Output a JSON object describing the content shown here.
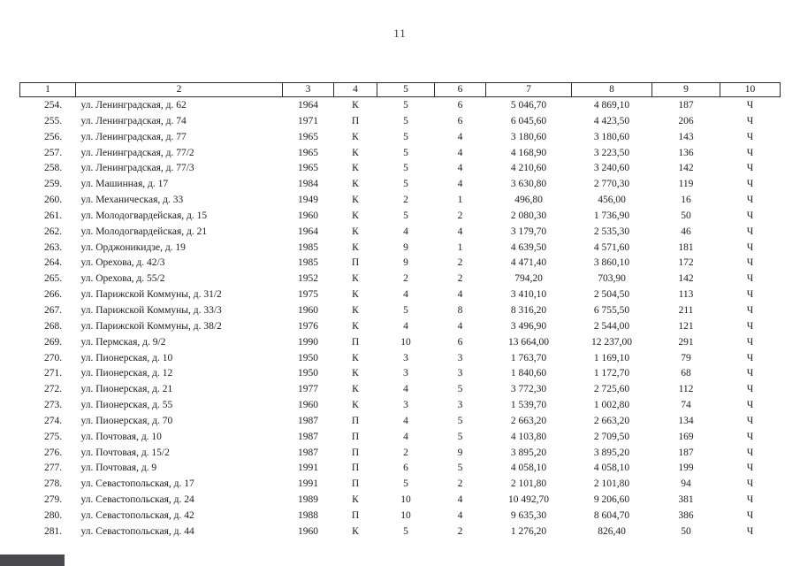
{
  "page": {
    "number": "11"
  },
  "colors": {
    "scan_artifact": "#4a4a4e"
  },
  "table": {
    "headers": [
      "1",
      "2",
      "3",
      "4",
      "5",
      "6",
      "7",
      "8",
      "9",
      "10"
    ],
    "rows": [
      {
        "num": "254.",
        "address": "ул. Ленинградская, д. 62",
        "year": "1964",
        "material": "К",
        "floors": "5",
        "entrances": "6",
        "area_total": "5 046,70",
        "area_living": "4 869,10",
        "residents": "187",
        "ownership": "Ч"
      },
      {
        "num": "255.",
        "address": "ул. Ленинградская, д. 74",
        "year": "1971",
        "material": "П",
        "floors": "5",
        "entrances": "6",
        "area_total": "6 045,60",
        "area_living": "4 423,50",
        "residents": "206",
        "ownership": "Ч"
      },
      {
        "num": "256.",
        "address": "ул. Ленинградская, д. 77",
        "year": "1965",
        "material": "К",
        "floors": "5",
        "entrances": "4",
        "area_total": "3 180,60",
        "area_living": "3 180,60",
        "residents": "143",
        "ownership": "Ч"
      },
      {
        "num": "257.",
        "address": "ул. Ленинградская, д. 77/2",
        "year": "1965",
        "material": "К",
        "floors": "5",
        "entrances": "4",
        "area_total": "4 168,90",
        "area_living": "3 223,50",
        "residents": "136",
        "ownership": "Ч"
      },
      {
        "num": "258.",
        "address": "ул. Ленинградская, д. 77/3",
        "year": "1965",
        "material": "К",
        "floors": "5",
        "entrances": "4",
        "area_total": "4 210,60",
        "area_living": "3 240,60",
        "residents": "142",
        "ownership": "Ч"
      },
      {
        "num": "259.",
        "address": "ул. Машинная, д. 17",
        "year": "1984",
        "material": "К",
        "floors": "5",
        "entrances": "4",
        "area_total": "3 630,80",
        "area_living": "2 770,30",
        "residents": "119",
        "ownership": "Ч"
      },
      {
        "num": "260.",
        "address": "ул. Механическая, д. 33",
        "year": "1949",
        "material": "К",
        "floors": "2",
        "entrances": "1",
        "area_total": "496,80",
        "area_living": "456,00",
        "residents": "16",
        "ownership": "Ч"
      },
      {
        "num": "261.",
        "address": "ул. Молодогвардейская, д. 15",
        "year": "1960",
        "material": "К",
        "floors": "5",
        "entrances": "2",
        "area_total": "2 080,30",
        "area_living": "1 736,90",
        "residents": "50",
        "ownership": "Ч"
      },
      {
        "num": "262.",
        "address": "ул. Молодогвардейская, д. 21",
        "year": "1964",
        "material": "К",
        "floors": "4",
        "entrances": "4",
        "area_total": "3 179,70",
        "area_living": "2 535,30",
        "residents": "46",
        "ownership": "Ч"
      },
      {
        "num": "263.",
        "address": "ул. Орджоникидзе, д. 19",
        "year": "1985",
        "material": "К",
        "floors": "9",
        "entrances": "1",
        "area_total": "4 639,50",
        "area_living": "4 571,60",
        "residents": "181",
        "ownership": "Ч"
      },
      {
        "num": "264.",
        "address": "ул. Орехова, д. 42/3",
        "year": "1985",
        "material": "П",
        "floors": "9",
        "entrances": "2",
        "area_total": "4 471,40",
        "area_living": "3 860,10",
        "residents": "172",
        "ownership": "Ч"
      },
      {
        "num": "265.",
        "address": "ул. Орехова, д. 55/2",
        "year": "1952",
        "material": "К",
        "floors": "2",
        "entrances": "2",
        "area_total": "794,20",
        "area_living": "703,90",
        "residents": "142",
        "ownership": "Ч"
      },
      {
        "num": "266.",
        "address": "ул. Парижской Коммуны, д. 31/2",
        "year": "1975",
        "material": "К",
        "floors": "4",
        "entrances": "4",
        "area_total": "3 410,10",
        "area_living": "2 504,50",
        "residents": "113",
        "ownership": "Ч"
      },
      {
        "num": "267.",
        "address": "ул. Парижской Коммуны, д. 33/3",
        "year": "1960",
        "material": "К",
        "floors": "5",
        "entrances": "8",
        "area_total": "8 316,20",
        "area_living": "6 755,50",
        "residents": "211",
        "ownership": "Ч"
      },
      {
        "num": "268.",
        "address": "ул. Парижской Коммуны, д. 38/2",
        "year": "1976",
        "material": "К",
        "floors": "4",
        "entrances": "4",
        "area_total": "3 496,90",
        "area_living": "2 544,00",
        "residents": "121",
        "ownership": "Ч"
      },
      {
        "num": "269.",
        "address": "ул. Пермская, д. 9/2",
        "year": "1990",
        "material": "П",
        "floors": "10",
        "entrances": "6",
        "area_total": "13 664,00",
        "area_living": "12 237,00",
        "residents": "291",
        "ownership": "Ч"
      },
      {
        "num": "270.",
        "address": "ул. Пионерская, д. 10",
        "year": "1950",
        "material": "К",
        "floors": "3",
        "entrances": "3",
        "area_total": "1 763,70",
        "area_living": "1 169,10",
        "residents": "79",
        "ownership": "Ч"
      },
      {
        "num": "271.",
        "address": "ул. Пионерская, д. 12",
        "year": "1950",
        "material": "К",
        "floors": "3",
        "entrances": "3",
        "area_total": "1 840,60",
        "area_living": "1 172,70",
        "residents": "68",
        "ownership": "Ч"
      },
      {
        "num": "272.",
        "address": "ул. Пионерская, д. 21",
        "year": "1977",
        "material": "К",
        "floors": "4",
        "entrances": "5",
        "area_total": "3 772,30",
        "area_living": "2 725,60",
        "residents": "112",
        "ownership": "Ч"
      },
      {
        "num": "273.",
        "address": "ул. Пионерская, д. 55",
        "year": "1960",
        "material": "К",
        "floors": "3",
        "entrances": "3",
        "area_total": "1 539,70",
        "area_living": "1 002,80",
        "residents": "74",
        "ownership": "Ч"
      },
      {
        "num": "274.",
        "address": "ул. Пионерская, д. 70",
        "year": "1987",
        "material": "П",
        "floors": "4",
        "entrances": "5",
        "area_total": "2 663,20",
        "area_living": "2 663,20",
        "residents": "134",
        "ownership": "Ч"
      },
      {
        "num": "275.",
        "address": "ул. Почтовая, д. 10",
        "year": "1987",
        "material": "П",
        "floors": "4",
        "entrances": "5",
        "area_total": "4 103,80",
        "area_living": "2 709,50",
        "residents": "169",
        "ownership": "Ч"
      },
      {
        "num": "276.",
        "address": "ул. Почтовая, д. 15/2",
        "year": "1987",
        "material": "П",
        "floors": "2",
        "entrances": "9",
        "area_total": "3 895,20",
        "area_living": "3 895,20",
        "residents": "187",
        "ownership": "Ч"
      },
      {
        "num": "277.",
        "address": "ул. Почтовая, д. 9",
        "year": "1991",
        "material": "П",
        "floors": "6",
        "entrances": "5",
        "area_total": "4 058,10",
        "area_living": "4 058,10",
        "residents": "199",
        "ownership": "Ч"
      },
      {
        "num": "278.",
        "address": "ул. Севастопольская, д. 17",
        "year": "1991",
        "material": "П",
        "floors": "5",
        "entrances": "2",
        "area_total": "2 101,80",
        "area_living": "2 101,80",
        "residents": "94",
        "ownership": "Ч"
      },
      {
        "num": "279.",
        "address": "ул. Севастопольская, д. 24",
        "year": "1989",
        "material": "К",
        "floors": "10",
        "entrances": "4",
        "area_total": "10 492,70",
        "area_living": "9 206,60",
        "residents": "381",
        "ownership": "Ч"
      },
      {
        "num": "280.",
        "address": "ул. Севастопольская, д. 42",
        "year": "1988",
        "material": "П",
        "floors": "10",
        "entrances": "4",
        "area_total": "9 635,30",
        "area_living": "8 604,70",
        "residents": "386",
        "ownership": "Ч"
      },
      {
        "num": "281.",
        "address": "ул. Севастопольская, д. 44",
        "year": "1960",
        "material": "К",
        "floors": "5",
        "entrances": "2",
        "area_total": "1 276,20",
        "area_living": "826,40",
        "residents": "50",
        "ownership": "Ч"
      }
    ]
  }
}
